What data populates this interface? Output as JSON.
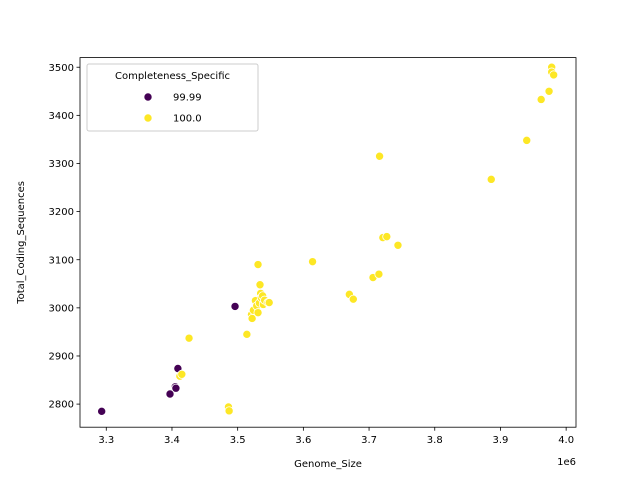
{
  "chart_data": {
    "type": "scatter",
    "xlabel": "Genome_Size",
    "ylabel": "Total_Coding_Sequences",
    "x_offset_label": "1e6",
    "xlim": [
      3.26,
      4.015
    ],
    "ylim": [
      2752,
      3520
    ],
    "xticks": [
      3.3,
      3.4,
      3.5,
      3.6,
      3.7,
      3.8,
      3.9,
      4.0
    ],
    "xtick_labels": [
      "3.3",
      "3.4",
      "3.5",
      "3.6",
      "3.7",
      "3.8",
      "3.9",
      "4.0"
    ],
    "yticks": [
      2800,
      2900,
      3000,
      3100,
      3200,
      3300,
      3400,
      3500
    ],
    "ytick_labels": [
      "2800",
      "2900",
      "3000",
      "3100",
      "3200",
      "3300",
      "3400",
      "3500"
    ],
    "grid": false,
    "legend": {
      "title": "Completeness_Specific",
      "placement": "upper-left"
    },
    "series": [
      {
        "name": "99.99",
        "color": "#440154",
        "points": [
          [
            3.293,
            2785
          ],
          [
            3.397,
            2821
          ],
          [
            3.405,
            2836
          ],
          [
            3.406,
            2833
          ],
          [
            3.409,
            2874
          ],
          [
            3.496,
            3003
          ]
        ]
      },
      {
        "name": "100.0",
        "color": "#fde725",
        "points": [
          [
            3.412,
            2858
          ],
          [
            3.415,
            2862
          ],
          [
            3.426,
            2937
          ],
          [
            3.486,
            2794
          ],
          [
            3.487,
            2786
          ],
          [
            3.514,
            2945
          ],
          [
            3.521,
            2986
          ],
          [
            3.522,
            2978
          ],
          [
            3.524,
            2995
          ],
          [
            3.527,
            3015
          ],
          [
            3.529,
            3004
          ],
          [
            3.531,
            3090
          ],
          [
            3.531,
            2990
          ],
          [
            3.533,
            3010
          ],
          [
            3.534,
            3048
          ],
          [
            3.535,
            3030
          ],
          [
            3.536,
            3021
          ],
          [
            3.538,
            3025
          ],
          [
            3.539,
            3007
          ],
          [
            3.541,
            3016
          ],
          [
            3.546,
            3011
          ],
          [
            3.548,
            3011
          ],
          [
            3.614,
            3096
          ],
          [
            3.67,
            3028
          ],
          [
            3.676,
            3018
          ],
          [
            3.706,
            3063
          ],
          [
            3.715,
            3070
          ],
          [
            3.716,
            3315
          ],
          [
            3.721,
            3146
          ],
          [
            3.727,
            3148
          ],
          [
            3.744,
            3130
          ],
          [
            3.886,
            3267
          ],
          [
            3.94,
            3348
          ],
          [
            3.962,
            3433
          ],
          [
            3.974,
            3450
          ],
          [
            3.978,
            3500
          ],
          [
            3.978,
            3490
          ],
          [
            3.981,
            3484
          ]
        ]
      }
    ]
  }
}
